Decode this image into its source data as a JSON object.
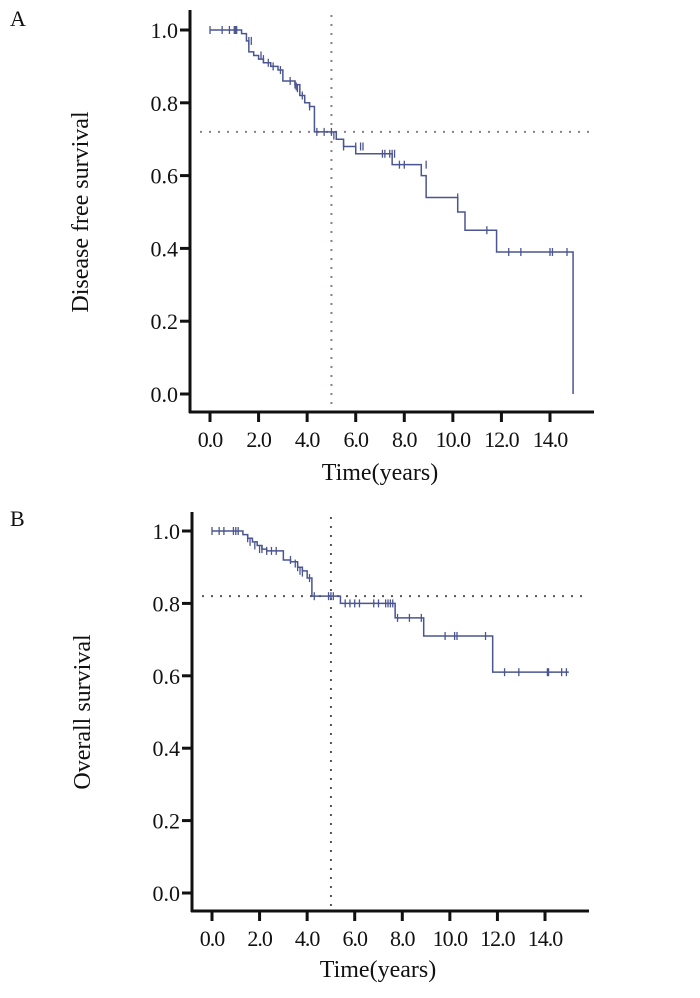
{
  "chart_data": [
    {
      "type": "line",
      "panel_label": "A",
      "title": "",
      "xlabel": "Time(years)",
      "ylabel": "Disease free survival",
      "xlim": [
        -1,
        15.9
      ],
      "ylim": [
        0.0,
        1.0
      ],
      "x_ticks": [
        0,
        2,
        4,
        6,
        8,
        10,
        12,
        14
      ],
      "x_tick_labels": [
        "0.0",
        "2.0",
        "4.0",
        "6.0",
        "8.0",
        "10.0",
        "12.0",
        "14.0"
      ],
      "y_ticks": [
        0.0,
        0.2,
        0.4,
        0.6,
        0.8,
        1.0
      ],
      "y_tick_labels": [
        "0.0",
        "0.2",
        "0.4",
        "0.6",
        "0.8",
        "1.0"
      ],
      "line_color": "#4a5591",
      "reference_color": "#8a7f85",
      "reference_lines": {
        "x": 5.0,
        "y": 0.72
      },
      "step_x": [
        0,
        1.0,
        1.3,
        1.5,
        1.6,
        1.8,
        2.0,
        2.2,
        2.5,
        2.8,
        3.0,
        3.3,
        3.5,
        3.7,
        3.9,
        4.1,
        4.3,
        5.0,
        5.2,
        5.5,
        6.0,
        7.5,
        8.7,
        8.9,
        10.0,
        10.2,
        10.5,
        11.6,
        11.8,
        14.9,
        14.95
      ],
      "step_y": [
        1.0,
        1.0,
        0.99,
        0.97,
        0.94,
        0.93,
        0.92,
        0.91,
        0.9,
        0.89,
        0.86,
        0.86,
        0.85,
        0.82,
        0.8,
        0.79,
        0.72,
        0.72,
        0.7,
        0.68,
        0.66,
        0.63,
        0.6,
        0.54,
        0.54,
        0.5,
        0.45,
        0.45,
        0.39,
        0.39,
        0.0
      ],
      "censor_x": [
        0.0,
        0.5,
        0.8,
        1.0,
        1.05,
        1.1,
        1.6,
        1.7,
        2.1,
        2.2,
        2.4,
        2.6,
        2.9,
        3.3,
        3.5,
        3.55,
        3.6,
        3.7,
        3.8,
        4.1,
        4.4,
        4.7,
        5.0,
        5.1,
        5.5,
        6.0,
        6.2,
        6.3,
        7.1,
        7.2,
        7.4,
        7.5,
        7.6,
        7.8,
        8.0,
        8.9,
        10.2,
        11.4,
        12.3,
        12.8,
        14.0,
        14.1,
        14.7
      ],
      "censor_y": [
        1.0,
        1.0,
        1.0,
        1.0,
        1.0,
        1.0,
        0.97,
        0.97,
        0.93,
        0.92,
        0.91,
        0.9,
        0.89,
        0.86,
        0.85,
        0.845,
        0.84,
        0.83,
        0.82,
        0.79,
        0.72,
        0.72,
        0.72,
        0.71,
        0.68,
        0.68,
        0.68,
        0.68,
        0.66,
        0.66,
        0.66,
        0.66,
        0.66,
        0.63,
        0.63,
        0.63,
        0.54,
        0.45,
        0.39,
        0.39,
        0.39,
        0.39,
        0.39
      ]
    },
    {
      "type": "line",
      "panel_label": "B",
      "title": "",
      "xlabel": "Time(years)",
      "ylabel": "Overall survival",
      "xlim": [
        -1,
        15.9
      ],
      "ylim": [
        0.0,
        1.0
      ],
      "x_ticks": [
        0,
        2,
        4,
        6,
        8,
        10,
        12,
        14
      ],
      "x_tick_labels": [
        "0.0",
        "2.0",
        "4.0",
        "6.0",
        "8.0",
        "10.0",
        "12.0",
        "14.0"
      ],
      "y_ticks": [
        0.0,
        0.2,
        0.4,
        0.6,
        0.8,
        1.0
      ],
      "y_tick_labels": [
        "0.0",
        "0.2",
        "0.4",
        "0.6",
        "0.8",
        "1.0"
      ],
      "line_color": "#4a5591",
      "reference_color": "#555555",
      "reference_lines": {
        "x": 5.0,
        "y": 0.82
      },
      "step_x": [
        0,
        1.0,
        1.3,
        1.5,
        1.7,
        1.9,
        2.1,
        2.3,
        2.6,
        3.0,
        3.3,
        3.6,
        3.8,
        4.0,
        4.2,
        5.2,
        5.4,
        7.5,
        7.7,
        8.7,
        8.9,
        11.6,
        11.8,
        15.0
      ],
      "step_y": [
        1.0,
        1.0,
        0.99,
        0.98,
        0.97,
        0.96,
        0.95,
        0.945,
        0.945,
        0.92,
        0.915,
        0.9,
        0.89,
        0.87,
        0.82,
        0.82,
        0.8,
        0.8,
        0.76,
        0.76,
        0.71,
        0.71,
        0.61,
        0.61
      ],
      "censor_x": [
        0.0,
        0.3,
        0.5,
        0.9,
        1.0,
        1.1,
        1.5,
        1.6,
        1.8,
        2.0,
        2.1,
        2.3,
        2.5,
        2.7,
        3.3,
        3.5,
        3.6,
        3.7,
        3.8,
        4.1,
        4.3,
        4.9,
        5.0,
        5.1,
        5.6,
        5.8,
        6.0,
        6.2,
        6.8,
        7.0,
        7.3,
        7.4,
        7.5,
        7.6,
        7.8,
        8.3,
        8.8,
        9.8,
        10.2,
        10.3,
        11.5,
        12.3,
        12.9,
        14.1,
        14.15,
        14.7,
        14.9
      ],
      "censor_y": [
        1.0,
        1.0,
        1.0,
        1.0,
        1.0,
        1.0,
        0.98,
        0.97,
        0.96,
        0.95,
        0.95,
        0.945,
        0.945,
        0.945,
        0.92,
        0.91,
        0.9,
        0.89,
        0.885,
        0.87,
        0.82,
        0.82,
        0.82,
        0.82,
        0.8,
        0.8,
        0.8,
        0.8,
        0.8,
        0.8,
        0.8,
        0.8,
        0.8,
        0.8,
        0.76,
        0.76,
        0.76,
        0.71,
        0.71,
        0.71,
        0.71,
        0.61,
        0.61,
        0.61,
        0.61,
        0.61,
        0.61
      ]
    }
  ]
}
